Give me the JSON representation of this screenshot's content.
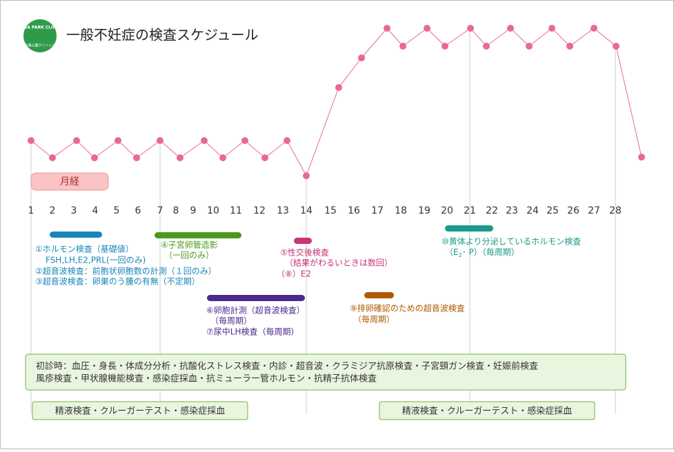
{
  "logo": {
    "name": "KISA PARK CLINIC",
    "sub": "木場公園クリニック"
  },
  "title": "一般不妊症の検査スケジュール",
  "menstruation": "月経",
  "days": [
    1,
    2,
    3,
    4,
    5,
    6,
    7,
    8,
    9,
    10,
    11,
    12,
    13,
    14,
    15,
    16,
    17,
    18,
    19,
    20,
    21,
    22,
    23,
    24,
    25,
    26,
    27,
    28
  ],
  "tests": [
    {
      "lines": [
        "①ホルモン検査（基礎値）",
        "FSH,LH,E2,PRL(一回のみ)",
        "②超音波検査：前胞状卵胞数の計測（１回のみ）",
        "③超音波検査：卵巣のう腫の有無（不定期）"
      ]
    },
    {
      "lines": [
        "④子宮卵管造影",
        "（一回のみ）"
      ]
    },
    {
      "lines": [
        "⑤性交後検査",
        "（結果がわるいときは数回）",
        "（⑧）E2"
      ]
    },
    {
      "lines": [
        "⑥卵胞計測（超音波検査）",
        "（毎周期）",
        "⑦尿中LH検査（毎周期）"
      ]
    },
    {
      "lines": [
        "⑨排卵確認のための超音波検査",
        "（毎周期）"
      ]
    },
    {
      "lines": [
        "⑩黄体より分泌しているホルモン検査"
      ],
      "sub_line": [
        "（E",
        "2",
        "･ P）（毎周期）"
      ]
    }
  ],
  "first_visit": [
    "初診時：血圧・身長・体成分分析・抗酸化ストレス検査・内診・超音波・クラミジア抗原検査・子宮頸ガン検査・妊娠前検査",
    "風疹検査・甲状腺機能検査・感染症採血・抗ミューラー管ホルモン・抗精子抗体検査"
  ],
  "semen": [
    "精液検査・クルーガーテスト・感染症採血",
    "精液検査・クルーガーテスト・感染症採血"
  ]
}
